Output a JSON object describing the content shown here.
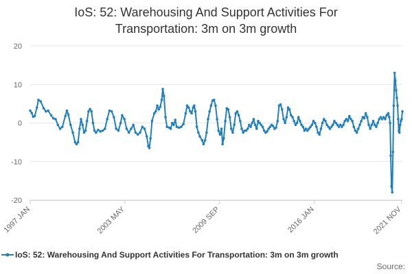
{
  "title_line1": "IoS: 52: Warehousing And Support Activities For",
  "title_line2": "Transportation: 3m on 3m growth",
  "source_label": "Source:",
  "series_color": "#1f7fbf",
  "legend_label": "IoS: 52: Warehousing And Support Activities For Transportation: 3m on 3m growth",
  "chart_data": {
    "type": "line",
    "title": "IoS: 52: Warehousing And Support Activities For Transportation: 3m on 3m growth",
    "xlabel": "",
    "ylabel": "",
    "ylim": [
      -20,
      20
    ],
    "yticks": [
      20,
      10,
      0,
      -10,
      -20
    ],
    "xlim": [
      1997.0,
      2021.9
    ],
    "xtick_positions": [
      1997.0,
      2003.33,
      2009.67,
      2016.0,
      2021.83
    ],
    "xtick_labels": [
      "1997 JAN",
      "2003 MAY",
      "2009 SEP",
      "2016 JAN",
      "2021 NOV"
    ],
    "legend_position": "bottom",
    "grid": "horizontal",
    "series": [
      {
        "name": "IoS: 52: Warehousing And Support Activities For Transportation: 3m on 3m growth",
        "keypoints": [
          [
            1997.0,
            3.2
          ],
          [
            1997.1,
            2.6
          ],
          [
            1997.2,
            1.6
          ],
          [
            1997.3,
            1.8
          ],
          [
            1997.45,
            4.0
          ],
          [
            1997.55,
            6.0
          ],
          [
            1997.7,
            5.6
          ],
          [
            1997.9,
            3.8
          ],
          [
            1998.05,
            3.0
          ],
          [
            1998.2,
            3.2
          ],
          [
            1998.4,
            2.0
          ],
          [
            1998.55,
            1.2
          ],
          [
            1998.7,
            1.0
          ],
          [
            1998.85,
            -0.5
          ],
          [
            1999.0,
            -1.5
          ],
          [
            1999.15,
            -1.0
          ],
          [
            1999.35,
            1.8
          ],
          [
            1999.45,
            3.2
          ],
          [
            1999.55,
            2.2
          ],
          [
            1999.7,
            -0.5
          ],
          [
            1999.85,
            -2.5
          ],
          [
            2000.0,
            -5.0
          ],
          [
            2000.1,
            -5.5
          ],
          [
            2000.2,
            -5.0
          ],
          [
            2000.3,
            -1.5
          ],
          [
            2000.4,
            1.0
          ],
          [
            2000.5,
            -0.5
          ],
          [
            2000.6,
            -2.5
          ],
          [
            2000.7,
            -2.0
          ],
          [
            2000.8,
            0.5
          ],
          [
            2000.9,
            3.0
          ],
          [
            2001.0,
            3.6
          ],
          [
            2001.1,
            3.0
          ],
          [
            2001.2,
            0.0
          ],
          [
            2001.3,
            -2.0
          ],
          [
            2001.4,
            -2.5
          ],
          [
            2001.55,
            -1.8
          ],
          [
            2001.7,
            -2.2
          ],
          [
            2001.85,
            -2.0
          ],
          [
            2002.0,
            -1.5
          ],
          [
            2002.15,
            1.0
          ],
          [
            2002.3,
            3.2
          ],
          [
            2002.45,
            3.0
          ],
          [
            2002.6,
            1.5
          ],
          [
            2002.75,
            -1.5
          ],
          [
            2002.9,
            -2.0
          ],
          [
            2003.05,
            0.0
          ],
          [
            2003.15,
            2.0
          ],
          [
            2003.3,
            1.0
          ],
          [
            2003.45,
            -1.5
          ],
          [
            2003.6,
            -2.5
          ],
          [
            2003.75,
            -1.5
          ],
          [
            2003.9,
            -0.5
          ],
          [
            2004.05,
            -2.5
          ],
          [
            2004.2,
            -3.0
          ],
          [
            2004.35,
            -2.5
          ],
          [
            2004.5,
            -1.0
          ],
          [
            2004.65,
            -1.5
          ],
          [
            2004.8,
            -3.5
          ],
          [
            2004.9,
            -6.0
          ],
          [
            2004.97,
            -6.5
          ],
          [
            2005.05,
            -4.0
          ],
          [
            2005.15,
            0.5
          ],
          [
            2005.3,
            2.5
          ],
          [
            2005.4,
            3.0
          ],
          [
            2005.5,
            4.5
          ],
          [
            2005.6,
            3.5
          ],
          [
            2005.7,
            4.2
          ],
          [
            2005.8,
            6.0
          ],
          [
            2005.87,
            8.8
          ],
          [
            2005.95,
            7.0
          ],
          [
            2006.05,
            1.5
          ],
          [
            2006.15,
            -1.0
          ],
          [
            2006.3,
            -1.2
          ],
          [
            2006.4,
            -1.5
          ],
          [
            2006.5,
            0.0
          ],
          [
            2006.6,
            -0.5
          ],
          [
            2006.7,
            0.8
          ],
          [
            2006.8,
            -1.0
          ],
          [
            2006.95,
            -1.2
          ],
          [
            2007.1,
            -1.0
          ],
          [
            2007.25,
            -0.3
          ],
          [
            2007.4,
            2.5
          ],
          [
            2007.5,
            4.5
          ],
          [
            2007.6,
            4.0
          ],
          [
            2007.7,
            3.0
          ],
          [
            2007.8,
            2.5
          ],
          [
            2007.9,
            4.0
          ],
          [
            2007.97,
            4.5
          ],
          [
            2008.05,
            3.0
          ],
          [
            2008.15,
            -1.0
          ],
          [
            2008.25,
            -2.5
          ],
          [
            2008.35,
            -3.5
          ],
          [
            2008.5,
            -4.5
          ],
          [
            2008.6,
            -5.5
          ],
          [
            2008.7,
            -4.5
          ],
          [
            2008.8,
            -2.5
          ],
          [
            2008.9,
            1.0
          ],
          [
            2009.0,
            3.0
          ],
          [
            2009.1,
            4.5
          ],
          [
            2009.2,
            5.8
          ],
          [
            2009.3,
            6.0
          ],
          [
            2009.4,
            4.5
          ],
          [
            2009.5,
            1.0
          ],
          [
            2009.6,
            -2.0
          ],
          [
            2009.7,
            -3.0
          ],
          [
            2009.8,
            -1.5
          ],
          [
            2009.87,
            -5.5
          ],
          [
            2009.95,
            -4.0
          ],
          [
            2010.05,
            0.5
          ],
          [
            2010.15,
            3.8
          ],
          [
            2010.25,
            3.5
          ],
          [
            2010.35,
            1.5
          ],
          [
            2010.45,
            -1.5
          ],
          [
            2010.55,
            -2.5
          ],
          [
            2010.65,
            -0.5
          ],
          [
            2010.75,
            2.5
          ],
          [
            2010.85,
            3.0
          ],
          [
            2010.95,
            2.0
          ],
          [
            2011.05,
            0.5
          ],
          [
            2011.15,
            -1.5
          ],
          [
            2011.25,
            -2.5
          ],
          [
            2011.35,
            -2.0
          ],
          [
            2011.45,
            -2.0
          ],
          [
            2011.55,
            -1.5
          ],
          [
            2011.65,
            -0.5
          ],
          [
            2011.75,
            -1.0
          ],
          [
            2011.85,
            0.0
          ],
          [
            2011.95,
            1.0
          ],
          [
            2012.05,
            -0.5
          ],
          [
            2012.15,
            -1.5
          ],
          [
            2012.25,
            0.5
          ],
          [
            2012.35,
            0.0
          ],
          [
            2012.45,
            -0.5
          ],
          [
            2012.55,
            -1.0
          ],
          [
            2012.65,
            -2.0
          ],
          [
            2012.75,
            -2.5
          ],
          [
            2012.85,
            -2.2
          ],
          [
            2012.95,
            -1.5
          ],
          [
            2013.05,
            -1.0
          ],
          [
            2013.15,
            -0.5
          ],
          [
            2013.25,
            -0.8
          ],
          [
            2013.35,
            -1.5
          ],
          [
            2013.45,
            -1.2
          ],
          [
            2013.55,
            0.5
          ],
          [
            2013.65,
            4.5
          ],
          [
            2013.75,
            4.8
          ],
          [
            2013.85,
            3.5
          ],
          [
            2013.95,
            1.0
          ],
          [
            2014.05,
            0.0
          ],
          [
            2014.15,
            1.5
          ],
          [
            2014.25,
            4.0
          ],
          [
            2014.35,
            3.5
          ],
          [
            2014.45,
            2.0
          ],
          [
            2014.55,
            1.5
          ],
          [
            2014.65,
            0.5
          ],
          [
            2014.75,
            -0.5
          ],
          [
            2014.85,
            0.0
          ],
          [
            2014.95,
            1.5
          ],
          [
            2015.05,
            0.5
          ],
          [
            2015.15,
            -0.5
          ],
          [
            2015.25,
            -1.0
          ],
          [
            2015.35,
            -2.0
          ],
          [
            2015.45,
            -1.5
          ],
          [
            2015.55,
            -2.0
          ],
          [
            2015.65,
            -1.5
          ],
          [
            2015.75,
            -1.0
          ],
          [
            2015.85,
            -0.5
          ],
          [
            2015.95,
            0.5
          ],
          [
            2016.05,
            0.0
          ],
          [
            2016.15,
            -1.0
          ],
          [
            2016.25,
            -2.5
          ],
          [
            2016.35,
            -3.0
          ],
          [
            2016.45,
            -1.5
          ],
          [
            2016.55,
            0.0
          ],
          [
            2016.65,
            1.0
          ],
          [
            2016.75,
            0.5
          ],
          [
            2016.85,
            -0.5
          ],
          [
            2016.95,
            -1.0
          ],
          [
            2017.05,
            -1.5
          ],
          [
            2017.15,
            -1.0
          ],
          [
            2017.25,
            -0.5
          ],
          [
            2017.35,
            0.5
          ],
          [
            2017.45,
            0.0
          ],
          [
            2017.55,
            -0.5
          ],
          [
            2017.65,
            -1.0
          ],
          [
            2017.75,
            -0.5
          ],
          [
            2017.85,
            -1.0
          ],
          [
            2017.95,
            -0.5
          ],
          [
            2018.05,
            0.5
          ],
          [
            2018.15,
            1.0
          ],
          [
            2018.25,
            0.5
          ],
          [
            2018.35,
            1.8
          ],
          [
            2018.45,
            1.0
          ],
          [
            2018.55,
            0.5
          ],
          [
            2018.65,
            -1.0
          ],
          [
            2018.75,
            -2.0
          ],
          [
            2018.85,
            -2.5
          ],
          [
            2018.95,
            -1.5
          ],
          [
            2019.05,
            -0.5
          ],
          [
            2019.15,
            0.5
          ],
          [
            2019.25,
            1.5
          ],
          [
            2019.35,
            1.2
          ],
          [
            2019.45,
            2.5
          ],
          [
            2019.55,
            1.5
          ],
          [
            2019.65,
            -0.5
          ],
          [
            2019.75,
            -1.5
          ],
          [
            2019.85,
            -0.5
          ],
          [
            2019.95,
            0.5
          ],
          [
            2020.05,
            -0.5
          ],
          [
            2020.15,
            -1.0
          ],
          [
            2020.25,
            0.0
          ],
          [
            2020.35,
            1.0
          ],
          [
            2020.45,
            1.5
          ],
          [
            2020.55,
            1.0
          ],
          [
            2020.65,
            1.5
          ],
          [
            2020.75,
            1.0
          ],
          [
            2020.85,
            2.0
          ],
          [
            2020.95,
            2.5
          ],
          [
            2021.02,
            1.5
          ],
          [
            2021.08,
            0.0
          ],
          [
            2021.12,
            -8.5
          ],
          [
            2021.17,
            -16.5
          ],
          [
            2021.22,
            -18.0
          ],
          [
            2021.27,
            -7.5
          ],
          [
            2021.32,
            4.5
          ],
          [
            2021.38,
            13.0
          ],
          [
            2021.43,
            11.0
          ],
          [
            2021.48,
            8.5
          ],
          [
            2021.53,
            6.5
          ],
          [
            2021.58,
            4.5
          ],
          [
            2021.62,
            1.0
          ],
          [
            2021.66,
            -2.0
          ],
          [
            2021.7,
            -2.5
          ],
          [
            2021.75,
            -0.5
          ],
          [
            2021.8,
            0.5
          ],
          [
            2021.85,
            1.0
          ],
          [
            2021.9,
            3.0
          ]
        ]
      }
    ]
  }
}
